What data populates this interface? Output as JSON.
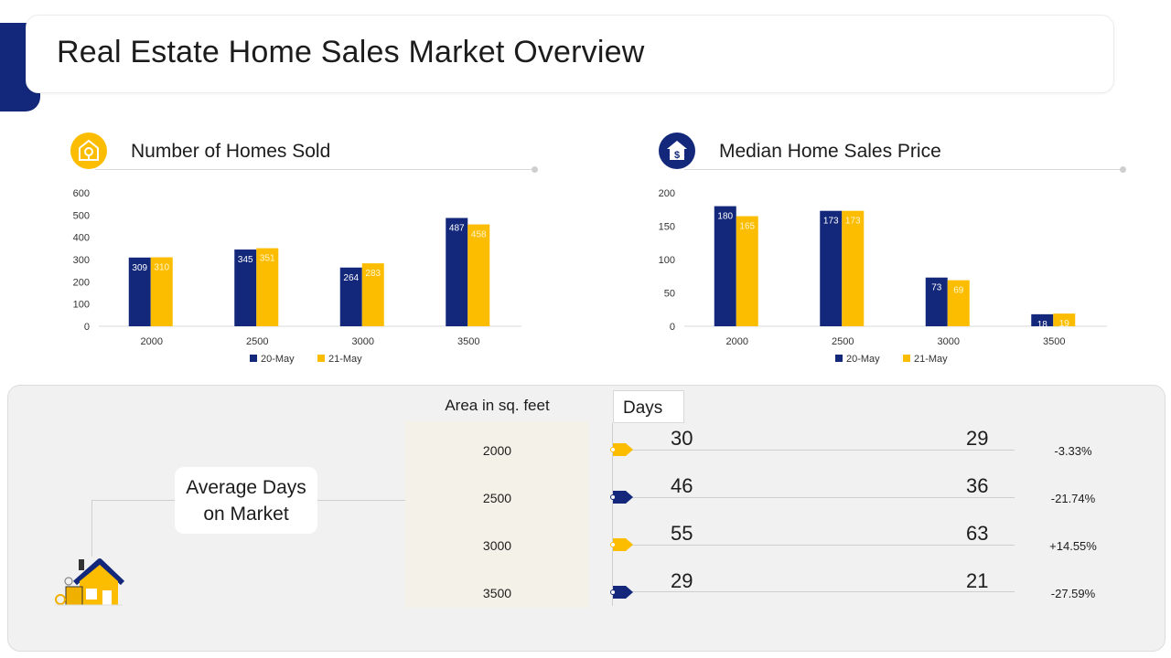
{
  "page": {
    "title": "Real Estate Home Sales Market Overview"
  },
  "colors": {
    "navy": "#13287a",
    "gold": "#fcbd00",
    "gold_dark": "#f0b000"
  },
  "legend": [
    "20-May",
    "21-May"
  ],
  "icons": {
    "homes_sold": "house-location-icon",
    "median_price": "house-dollar-icon",
    "avg_days": "house-illustration-icon"
  },
  "chart_data": [
    {
      "type": "bar",
      "title": "Number of Homes Sold",
      "categories": [
        "2000",
        "2500",
        "3000",
        "3500"
      ],
      "series": [
        {
          "name": "20-May",
          "values": [
            309,
            345,
            264,
            487
          ]
        },
        {
          "name": "21-May",
          "values": [
            310,
            351,
            283,
            458
          ]
        }
      ],
      "yticks": [
        0,
        100,
        200,
        300,
        400,
        500,
        600
      ],
      "ylim": [
        0,
        600
      ]
    },
    {
      "type": "bar",
      "title": "Median Home Sales Price",
      "categories": [
        "2000",
        "2500",
        "3000",
        "3500"
      ],
      "series": [
        {
          "name": "20-May",
          "values": [
            180,
            173,
            73,
            18
          ]
        },
        {
          "name": "21-May",
          "values": [
            165,
            173,
            69,
            19
          ]
        }
      ],
      "yticks": [
        0,
        50,
        100,
        150,
        200
      ],
      "ylim": [
        0,
        200
      ]
    }
  ],
  "days_table": {
    "card_label_line1": "Average Days",
    "card_label_line2": "on Market",
    "area_header": "Area in sq. feet",
    "days_header": "Days",
    "rows": [
      {
        "area": "2000",
        "a": "30",
        "b": "29",
        "change": "-3.33%",
        "tag": "gold"
      },
      {
        "area": "2500",
        "a": "46",
        "b": "36",
        "change": "-21.74%",
        "tag": "navy"
      },
      {
        "area": "3000",
        "a": "55",
        "b": "63",
        "change": "+14.55%",
        "tag": "gold"
      },
      {
        "area": "3500",
        "a": "29",
        "b": "21",
        "change": "-27.59%",
        "tag": "navy"
      }
    ]
  }
}
